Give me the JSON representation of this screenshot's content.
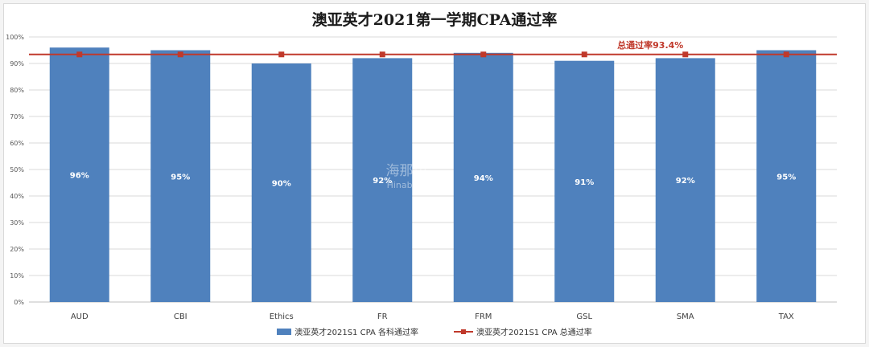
{
  "chart_data": {
    "type": "bar",
    "title": "澳亚英才2021第一学期CPA通过率",
    "categories": [
      "AUD",
      "CBI",
      "Ethics",
      "FR",
      "FRM",
      "GSL",
      "SMA",
      "TAX"
    ],
    "series": [
      {
        "name": "澳亚英才2021S1 CPA 各科通过率",
        "kind": "bar",
        "values": [
          96,
          95,
          90,
          92,
          94,
          91,
          92,
          95
        ],
        "labels": [
          "96%",
          "95%",
          "90%",
          "92%",
          "94%",
          "91%",
          "92%",
          "95%"
        ],
        "color": "#4f81bd"
      },
      {
        "name": "澳亚英才2021S1 CPA 总通过率",
        "kind": "line",
        "values": [
          93.4,
          93.4,
          93.4,
          93.4,
          93.4,
          93.4,
          93.4,
          93.4
        ],
        "color": "#c0392b"
      }
    ],
    "annotation": "总通过率93.4%",
    "yticks": [
      "0%",
      "10%",
      "20%",
      "30%",
      "40%",
      "50%",
      "60%",
      "70%",
      "80%",
      "90%",
      "100%"
    ],
    "ylim": [
      0,
      100
    ],
    "grid": true,
    "legend_position": "bottom"
  },
  "watermark": {
    "cn": "海那边",
    "en": "Hinabian"
  }
}
